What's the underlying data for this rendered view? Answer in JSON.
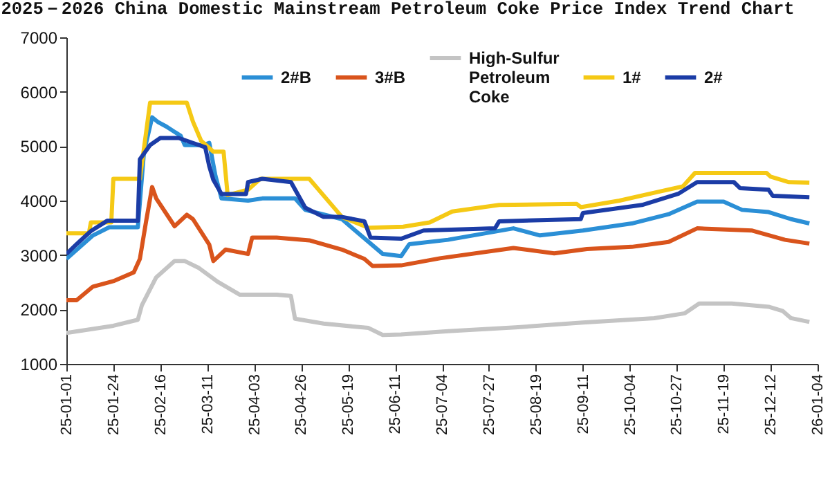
{
  "chart_data": {
    "type": "line",
    "title": "2025－2026 China Domestic Mainstream Petroleum Coke Price Index Trend Chart",
    "xlim": [
      "2025-01-01",
      "2026-01-04"
    ],
    "xticks": [
      {
        "value": "2025-01-01",
        "label": "25-01-01"
      },
      {
        "value": "2025-01-24",
        "label": "25-01-24"
      },
      {
        "value": "2025-02-16",
        "label": "25-02-16"
      },
      {
        "value": "2025-03-11",
        "label": "25-03-11"
      },
      {
        "value": "2025-04-03",
        "label": "25-04-03"
      },
      {
        "value": "2025-04-26",
        "label": "25-04-26"
      },
      {
        "value": "2025-05-19",
        "label": "25-05-19"
      },
      {
        "value": "2025-06-11",
        "label": "25-06-11"
      },
      {
        "value": "2025-07-04",
        "label": "25-07-04"
      },
      {
        "value": "2025-07-27",
        "label": "25-07-27"
      },
      {
        "value": "2025-08-19",
        "label": "25-08-19"
      },
      {
        "value": "2025-09-11",
        "label": "25-09-11"
      },
      {
        "value": "2025-10-04",
        "label": "25-10-04"
      },
      {
        "value": "2025-10-27",
        "label": "25-10-27"
      },
      {
        "value": "2025-11-19",
        "label": "25-11-19"
      },
      {
        "value": "2025-12-12",
        "label": "25-12-12"
      },
      {
        "value": "2026-01-04",
        "label": "26-01-04"
      }
    ],
    "ylim": [
      1000,
      7000
    ],
    "yticks": [
      1000,
      2000,
      3000,
      4000,
      5000,
      6000,
      7000
    ],
    "legend": "top",
    "series": [
      {
        "name": "2#B",
        "color": "#2b8fd6",
        "x": [
          "2025-01-01",
          "2025-01-14",
          "2025-01-22",
          "2025-02-05",
          "2025-02-08",
          "2025-02-12",
          "2025-02-15",
          "2025-02-19",
          "2025-02-26",
          "2025-02-28",
          "2025-03-09",
          "2025-03-12",
          "2025-03-15",
          "2025-03-18",
          "2025-03-31",
          "2025-04-07",
          "2025-04-23",
          "2025-04-28",
          "2025-05-16",
          "2025-05-20",
          "2025-06-05",
          "2025-06-14",
          "2025-06-18",
          "2025-07-07",
          "2025-08-08",
          "2025-08-21",
          "2025-09-11",
          "2025-10-05",
          "2025-10-23",
          "2025-11-06",
          "2025-11-19",
          "2025-11-28",
          "2025-12-11",
          "2025-12-22",
          "2025-12-31"
        ],
        "values": [
          2930,
          3360,
          3510,
          3510,
          4890,
          5530,
          5440,
          5360,
          5190,
          5020,
          5020,
          5060,
          4460,
          4040,
          4000,
          4040,
          4040,
          3830,
          3660,
          3530,
          3020,
          2980,
          3200,
          3280,
          3490,
          3360,
          3450,
          3580,
          3750,
          3980,
          3980,
          3830,
          3790,
          3660,
          3580
        ]
      },
      {
        "name": "3#B",
        "color": "#d9541c",
        "x": [
          "2025-01-01",
          "2025-01-06",
          "2025-01-14",
          "2025-01-24",
          "2025-02-03",
          "2025-02-06",
          "2025-02-09",
          "2025-02-12",
          "2025-02-14",
          "2025-02-23",
          "2025-03-01",
          "2025-03-04",
          "2025-03-12",
          "2025-03-14",
          "2025-03-20",
          "2025-03-31",
          "2025-04-02",
          "2025-04-14",
          "2025-04-30",
          "2025-05-16",
          "2025-05-27",
          "2025-05-31",
          "2025-06-14",
          "2025-07-03",
          "2025-08-08",
          "2025-08-28",
          "2025-09-13",
          "2025-10-05",
          "2025-10-23",
          "2025-11-06",
          "2025-12-03",
          "2025-12-19",
          "2025-12-31"
        ],
        "values": [
          2170,
          2170,
          2420,
          2520,
          2680,
          2930,
          3610,
          4250,
          4040,
          3530,
          3740,
          3660,
          3190,
          2890,
          3100,
          3020,
          3320,
          3320,
          3270,
          3100,
          2930,
          2800,
          2810,
          2940,
          3130,
          3030,
          3110,
          3150,
          3240,
          3490,
          3450,
          3280,
          3210
        ]
      },
      {
        "name": "High-Sulfur Petroleum Coke",
        "color": "#c4c4c4",
        "x": [
          "2025-01-01",
          "2025-01-24",
          "2025-02-05",
          "2025-02-07",
          "2025-02-14",
          "2025-02-23",
          "2025-02-28",
          "2025-03-07",
          "2025-03-16",
          "2025-03-27",
          "2025-04-14",
          "2025-04-21",
          "2025-04-23",
          "2025-05-07",
          "2025-05-29",
          "2025-06-05",
          "2025-06-14",
          "2025-07-07",
          "2025-08-09",
          "2025-09-11",
          "2025-10-16",
          "2025-10-31",
          "2025-11-07",
          "2025-11-23",
          "2025-12-11",
          "2025-12-18",
          "2025-12-22",
          "2025-12-31"
        ],
        "values": [
          1570,
          1700,
          1810,
          2080,
          2590,
          2890,
          2890,
          2760,
          2510,
          2270,
          2270,
          2250,
          1830,
          1740,
          1660,
          1530,
          1540,
          1600,
          1670,
          1760,
          1840,
          1930,
          2110,
          2110,
          2050,
          1970,
          1840,
          1770
        ]
      },
      {
        "name": "1#",
        "color": "#f5c915",
        "x": [
          "2025-01-01",
          "2025-01-12",
          "2025-01-13",
          "2025-01-23",
          "2025-01-24",
          "2025-02-06",
          "2025-02-11",
          "2025-03-01",
          "2025-03-04",
          "2025-03-08",
          "2025-03-14",
          "2025-03-19",
          "2025-03-21",
          "2025-03-31",
          "2025-04-06",
          "2025-04-30",
          "2025-05-16",
          "2025-05-29",
          "2025-06-15",
          "2025-06-28",
          "2025-07-09",
          "2025-08-01",
          "2025-09-08",
          "2025-09-10",
          "2025-09-29",
          "2025-10-19",
          "2025-10-30",
          "2025-11-05",
          "2025-12-10",
          "2025-12-12",
          "2025-12-21",
          "2025-12-31"
        ],
        "values": [
          3400,
          3400,
          3600,
          3600,
          4400,
          4400,
          5800,
          5800,
          5450,
          5100,
          4900,
          4900,
          4100,
          4200,
          4400,
          4400,
          3700,
          3500,
          3520,
          3600,
          3800,
          3920,
          3940,
          3880,
          4000,
          4170,
          4260,
          4510,
          4510,
          4440,
          4340,
          4330
        ]
      },
      {
        "name": "2#",
        "color": "#1b3ca6",
        "x": [
          "2025-01-01",
          "2025-01-06",
          "2025-01-13",
          "2025-01-21",
          "2025-02-05",
          "2025-02-06",
          "2025-02-11",
          "2025-02-16",
          "2025-02-25",
          "2025-03-07",
          "2025-03-10",
          "2025-03-12",
          "2025-03-14",
          "2025-03-18",
          "2025-03-30",
          "2025-03-31",
          "2025-04-07",
          "2025-04-21",
          "2025-04-28",
          "2025-05-07",
          "2025-05-16",
          "2025-05-27",
          "2025-05-30",
          "2025-06-14",
          "2025-06-25",
          "2025-07-30",
          "2025-08-01",
          "2025-09-10",
          "2025-09-11",
          "2025-10-10",
          "2025-10-28",
          "2025-11-06",
          "2025-11-24",
          "2025-11-27",
          "2025-12-11",
          "2025-12-13",
          "2025-12-31"
        ],
        "values": [
          3020,
          3200,
          3440,
          3630,
          3630,
          4760,
          5020,
          5150,
          5150,
          5020,
          4980,
          4630,
          4380,
          4120,
          4120,
          4340,
          4400,
          4340,
          3870,
          3700,
          3700,
          3620,
          3320,
          3300,
          3450,
          3490,
          3620,
          3660,
          3770,
          3920,
          4130,
          4340,
          4340,
          4230,
          4200,
          4090,
          4060
        ]
      }
    ]
  }
}
